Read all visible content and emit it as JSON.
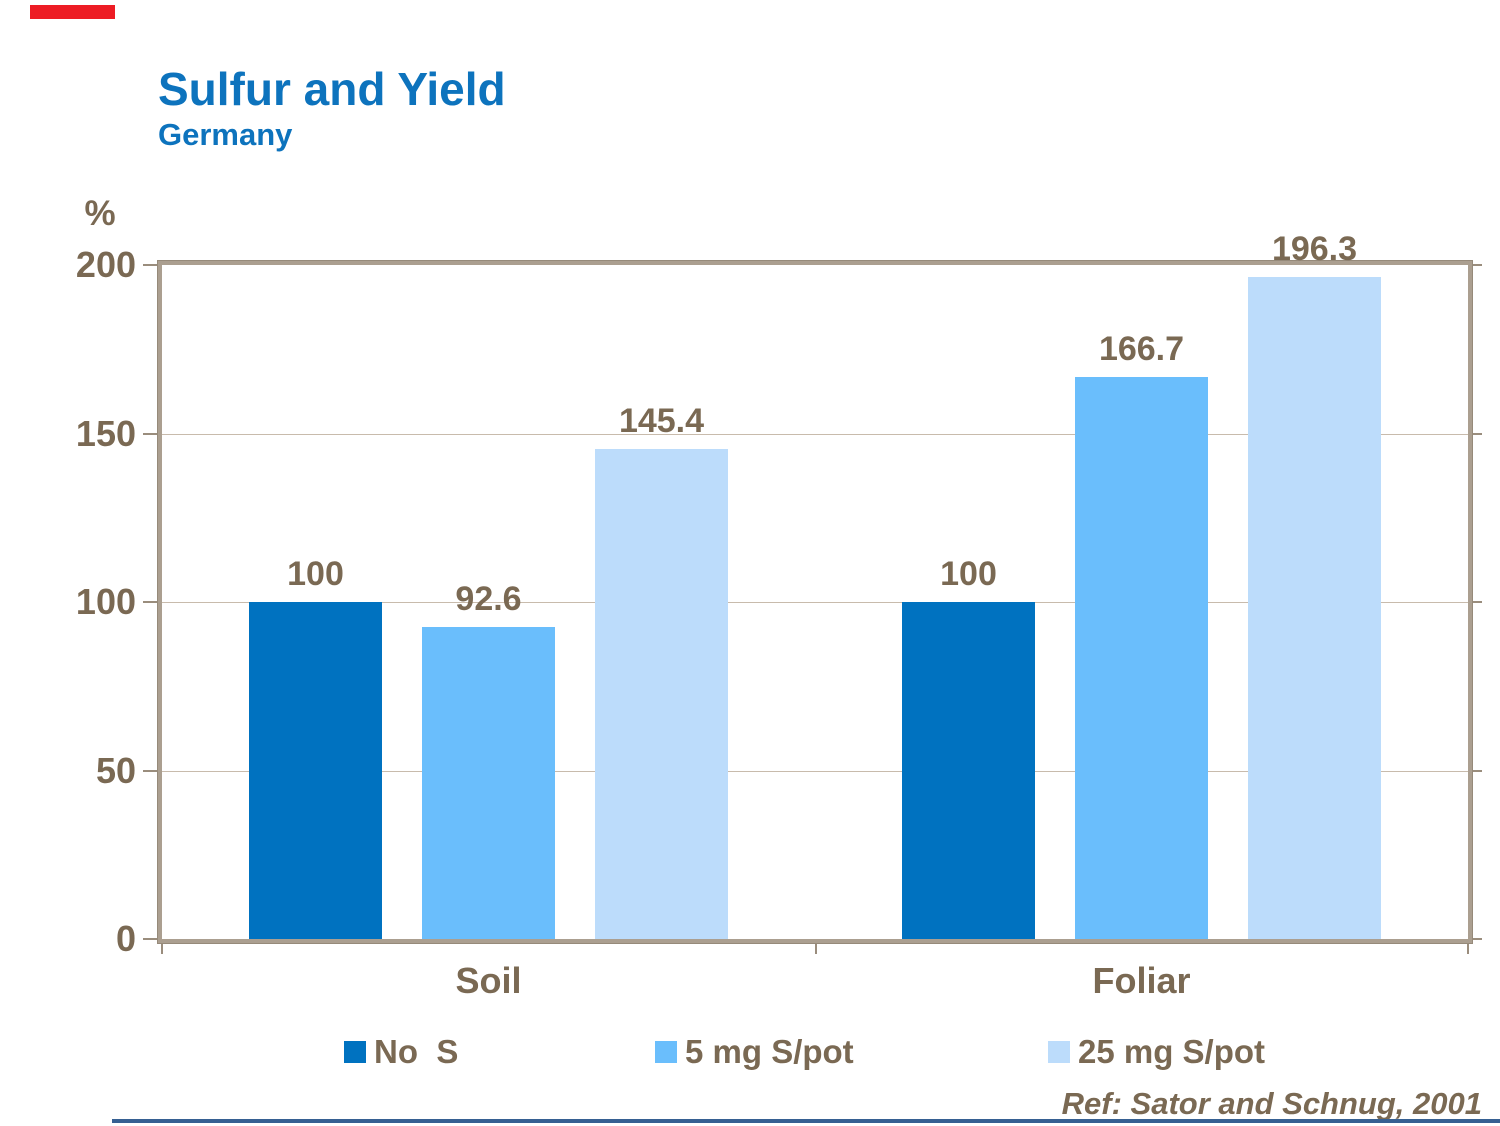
{
  "slide": {
    "title": "Sulfur and Yield",
    "subtitle": "Germany",
    "reference": "Ref: Sator and Schnug, 2001"
  },
  "colors": {
    "title_blue": "#0d73bd",
    "text_brown": "#7a6953",
    "accent_red": "#ed1c24",
    "bottom_line_blue": "#366092",
    "plot_border_tan": "#ab9f90",
    "gridline": "#c8bbac",
    "series": [
      "#0072c0",
      "#6abefc",
      "#bcdcfb"
    ]
  },
  "chart_data": {
    "type": "bar",
    "title": "Sulfur and Yield",
    "subtitle": "Germany",
    "xlabel": "",
    "ylabel": "%",
    "ylim": [
      0,
      200
    ],
    "yticks": [
      0,
      50,
      100,
      150,
      200
    ],
    "grid": true,
    "legend_position": "bottom",
    "categories": [
      "Soil",
      "Foliar"
    ],
    "series": [
      {
        "name": "No  S",
        "color": "#0072c0",
        "values": [
          100,
          100
        ],
        "labels": [
          "100",
          "100"
        ]
      },
      {
        "name": "5 mg S/pot",
        "color": "#6abefc",
        "values": [
          92.6,
          166.7
        ],
        "labels": [
          "92.6",
          "166.7"
        ]
      },
      {
        "name": "25 mg S/pot",
        "color": "#bcdcfb",
        "values": [
          145.4,
          196.3
        ],
        "labels": [
          "145.4",
          "196.3"
        ]
      }
    ],
    "annotation": "Ref: Sator and Schnug, 2001"
  }
}
